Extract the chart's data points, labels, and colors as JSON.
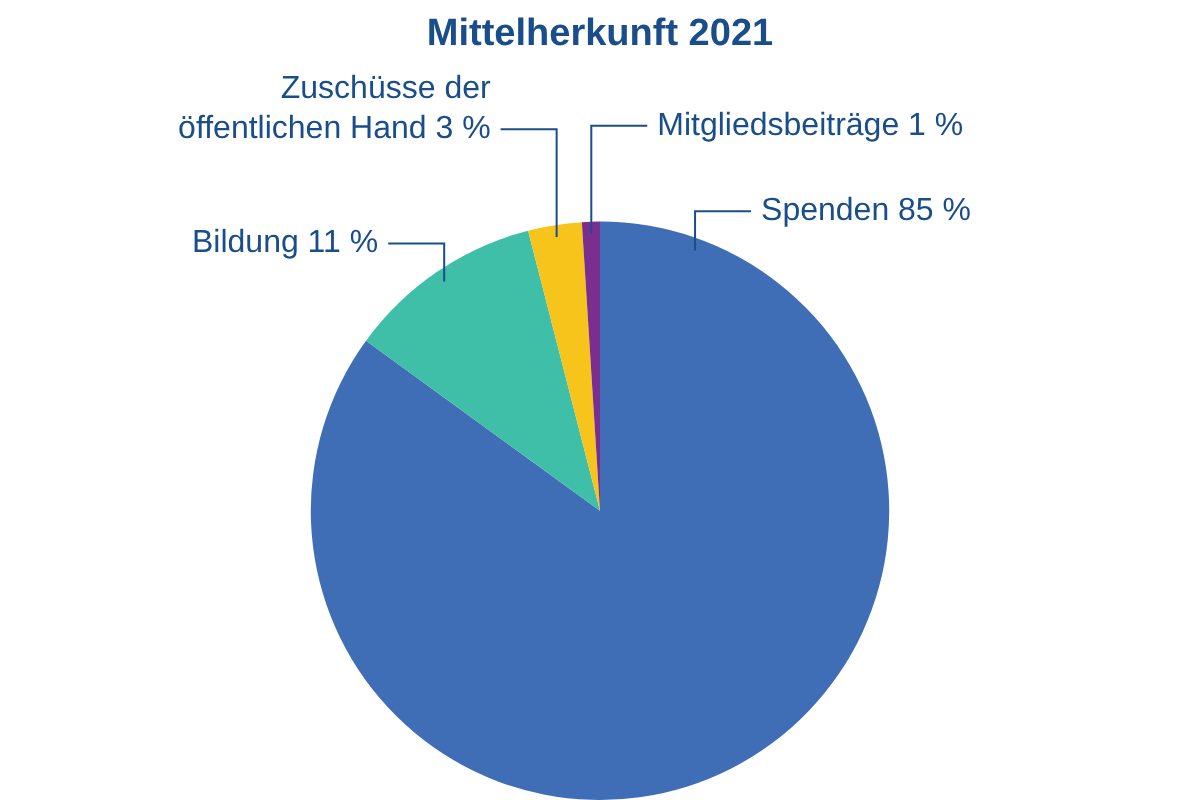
{
  "chart_data": {
    "type": "pie",
    "title": "Mittelherkunft 2021",
    "categories": [
      "Spenden",
      "Bildung",
      "Zuschüsse der öffentlichen Hand",
      "Mitgliedsbeiträge"
    ],
    "values": [
      85,
      11,
      3,
      1
    ],
    "value_labels": [
      "85 %",
      "11 %",
      "3 %",
      "1 %"
    ],
    "colors": [
      "#3f6db6",
      "#3fbfa8",
      "#f7c41b",
      "#7a2f8f"
    ]
  }
}
